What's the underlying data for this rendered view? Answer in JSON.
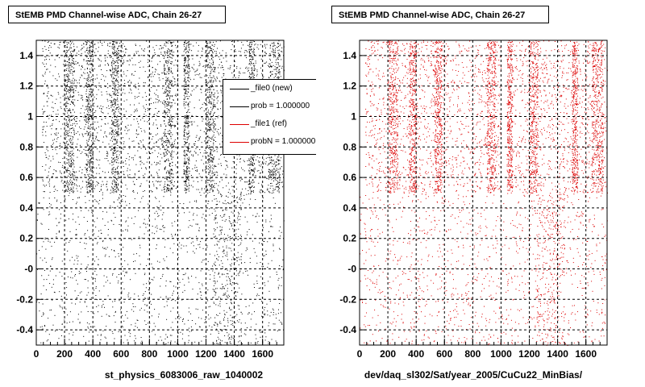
{
  "chart_data": [
    {
      "type": "scatter",
      "title": "StEMB PMD Channel-wise ADC, Chain 26-27",
      "xlabel": "st_physics_6083006_raw_1040002",
      "xlim": [
        0,
        1750
      ],
      "ylim": [
        -0.5,
        1.5
      ],
      "xticks": [
        0,
        200,
        400,
        600,
        800,
        1000,
        1200,
        1400,
        1600
      ],
      "yticks": [
        -0.4,
        -0.2,
        0,
        0.2,
        0.4,
        0.6,
        0.8,
        1,
        1.2,
        1.4
      ],
      "ytick_labels": [
        "-0.4",
        "-0.2",
        "-0",
        "0.2",
        "0.4",
        "0.6",
        "0.8",
        "1",
        "1.2",
        "1.4"
      ],
      "grid": true,
      "marker_color": "#000000",
      "band_upper_y": [
        0.5,
        1.5
      ],
      "band_lower_y": [
        -0.5,
        0.5
      ],
      "dense_columns_upper_x": [
        [
          200,
          270
        ],
        [
          350,
          400
        ],
        [
          530,
          580
        ],
        [
          900,
          960
        ],
        [
          1040,
          1080
        ],
        [
          1200,
          1260
        ],
        [
          1500,
          1540
        ],
        [
          1640,
          1720
        ]
      ],
      "dense_columns_lower_x": [
        [
          1250,
          1450
        ]
      ],
      "empty_upper_x": [
        [
          0,
          40
        ],
        [
          1000,
          1040
        ]
      ]
    },
    {
      "type": "scatter",
      "title": "StEMB PMD Channel-wise ADC, Chain 26-27",
      "xlabel": "dev/daq_sl302/Sat/year_2005/CuCu22_MinBias/",
      "xlim": [
        0,
        1750
      ],
      "ylim": [
        -0.5,
        1.5
      ],
      "xticks": [
        0,
        200,
        400,
        600,
        800,
        1000,
        1200,
        1400,
        1600
      ],
      "yticks": [
        -0.4,
        -0.2,
        0,
        0.2,
        0.4,
        0.6,
        0.8,
        1,
        1.2,
        1.4
      ],
      "ytick_labels": [
        "-0.4",
        "-0.2",
        "-0",
        "0.2",
        "0.4",
        "0.6",
        "0.8",
        "1",
        "1.2",
        "1.4"
      ],
      "grid": true,
      "marker_color": "#dd0000",
      "band_upper_y": [
        0.5,
        1.5
      ],
      "band_lower_y": [
        -0.5,
        0.5
      ],
      "dense_columns_upper_x": [
        [
          200,
          270
        ],
        [
          350,
          400
        ],
        [
          530,
          580
        ],
        [
          900,
          960
        ],
        [
          1040,
          1080
        ],
        [
          1200,
          1260
        ],
        [
          1500,
          1540
        ],
        [
          1640,
          1720
        ]
      ],
      "dense_columns_lower_x": [
        [
          1250,
          1450
        ]
      ],
      "empty_upper_x": [
        [
          0,
          40
        ],
        [
          1000,
          1040
        ]
      ]
    }
  ],
  "legend": {
    "placement": "top-right",
    "entries": [
      {
        "label": "_file0 (new)",
        "color": "#000000"
      },
      {
        "label": "prob = 1.000000",
        "color": "#000000"
      },
      {
        "label": "_file1 (ref)",
        "color": "#dd0000"
      },
      {
        "label": "probN = 1.000000",
        "color": "#dd0000"
      }
    ]
  }
}
